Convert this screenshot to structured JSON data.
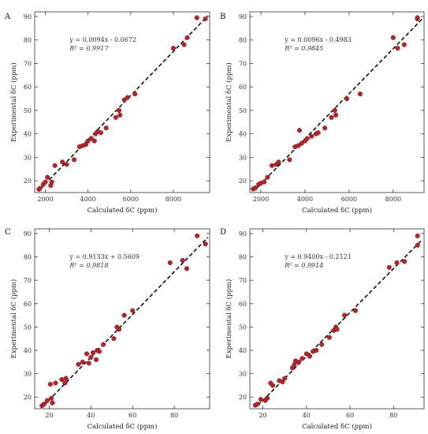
{
  "chart_data": [
    {
      "type": "scatter",
      "panel": "A",
      "xlabel": "Calculated δC (ppm)",
      "ylabel": "Experimental δC (ppm)",
      "xlim": [
        1500,
        9700
      ],
      "ylim": [
        15,
        92
      ],
      "xticks": [
        "2000",
        "4000",
        "6000",
        "8000"
      ],
      "yticks": [
        "20",
        "30",
        "40",
        "50",
        "60",
        "70",
        "80",
        "90"
      ],
      "equation": "y = 0.0094x - 0.0672",
      "r2_label": "R² = 0.9917",
      "fit": {
        "slope": 0.0094,
        "intercept": -0.0672
      },
      "points": [
        [
          1700,
          16.4
        ],
        [
          1750,
          16.8
        ],
        [
          1900,
          18.5
        ],
        [
          2000,
          19.5
        ],
        [
          2100,
          21.5
        ],
        [
          2250,
          18.0
        ],
        [
          2300,
          19.5
        ],
        [
          2450,
          26.5
        ],
        [
          2800,
          28.0
        ],
        [
          3000,
          27.0
        ],
        [
          3350,
          29.0
        ],
        [
          3600,
          34.5
        ],
        [
          3750,
          35.0
        ],
        [
          3900,
          35.5
        ],
        [
          4000,
          37.0
        ],
        [
          4150,
          38.0
        ],
        [
          4300,
          37.0
        ],
        [
          4350,
          40.0
        ],
        [
          4450,
          41.0
        ],
        [
          4600,
          40.5
        ],
        [
          4850,
          42.5
        ],
        [
          5300,
          47.0
        ],
        [
          5450,
          50.0
        ],
        [
          5500,
          48.0
        ],
        [
          5700,
          54.5
        ],
        [
          5850,
          55.5
        ],
        [
          6200,
          57.0
        ],
        [
          8000,
          76.5
        ],
        [
          8500,
          78.0
        ],
        [
          8650,
          81.0
        ],
        [
          9100,
          89.5
        ],
        [
          9500,
          89.0
        ]
      ]
    },
    {
      "type": "scatter",
      "panel": "B",
      "xlabel": "Calculated δC (ppm)",
      "ylabel": "Experimental δC (ppm)",
      "xlim": [
        1500,
        9400
      ],
      "ylim": [
        15,
        92
      ],
      "xticks": [
        "2000",
        "4000",
        "6000",
        "8000"
      ],
      "yticks": [
        "20",
        "30",
        "40",
        "50",
        "60",
        "70",
        "80",
        "90"
      ],
      "equation": "y = 0.0096x - 0.4983",
      "r2_label": "R² = 0.9845",
      "fit": {
        "slope": 0.0096,
        "intercept": -0.4983
      },
      "points": [
        [
          1650,
          16.5
        ],
        [
          1750,
          17.0
        ],
        [
          1900,
          18.5
        ],
        [
          2000,
          19.0
        ],
        [
          2150,
          19.5
        ],
        [
          2300,
          21.5
        ],
        [
          2500,
          26.5
        ],
        [
          2700,
          27.0
        ],
        [
          2800,
          28.0
        ],
        [
          3300,
          29.0
        ],
        [
          3550,
          34.5
        ],
        [
          3700,
          35.0
        ],
        [
          3750,
          41.5
        ],
        [
          3850,
          36.0
        ],
        [
          4000,
          37.0
        ],
        [
          4100,
          38.0
        ],
        [
          4300,
          39.0
        ],
        [
          4500,
          40.0
        ],
        [
          4600,
          40.5
        ],
        [
          4900,
          42.5
        ],
        [
          5200,
          47.0
        ],
        [
          5350,
          50.0
        ],
        [
          5400,
          48.0
        ],
        [
          5900,
          55.0
        ],
        [
          6500,
          57.0
        ],
        [
          8000,
          81.0
        ],
        [
          8200,
          76.5
        ],
        [
          8500,
          78.0
        ],
        [
          9100,
          89.0
        ],
        [
          9100,
          89.5
        ]
      ]
    },
    {
      "type": "scatter",
      "panel": "C",
      "xlabel": "Calculated δC (ppm)",
      "ylabel": "Experimental δC (ppm)",
      "xlim": [
        13,
        97
      ],
      "ylim": [
        15,
        92
      ],
      "xticks": [
        "20",
        "40",
        "60",
        "80"
      ],
      "yticks": [
        "20",
        "30",
        "40",
        "50",
        "60",
        "70",
        "80",
        "90"
      ],
      "equation": "y = 0.9133x + 0.5609",
      "r2_label": "R² = 0.9818",
      "fit": {
        "slope": 0.9133,
        "intercept": 0.5609
      },
      "points": [
        [
          16.5,
          16.3
        ],
        [
          17.5,
          17.0
        ],
        [
          19.0,
          18.5
        ],
        [
          20.5,
          25.5
        ],
        [
          21.0,
          19.5
        ],
        [
          21.5,
          17.5
        ],
        [
          23.0,
          26.0
        ],
        [
          26.0,
          27.5
        ],
        [
          27.5,
          26.0
        ],
        [
          28.0,
          28.0
        ],
        [
          34.0,
          34.0
        ],
        [
          36.0,
          35.0
        ],
        [
          38.0,
          38.5
        ],
        [
          39.0,
          34.5
        ],
        [
          40.0,
          37.0
        ],
        [
          41.0,
          39.0
        ],
        [
          42.5,
          36.0
        ],
        [
          43.0,
          40.0
        ],
        [
          44.0,
          39.5
        ],
        [
          46.0,
          42.5
        ],
        [
          51.0,
          45.0
        ],
        [
          52.5,
          50.0
        ],
        [
          53.5,
          49.0
        ],
        [
          56.0,
          55.0
        ],
        [
          60.0,
          57.0
        ],
        [
          78.0,
          77.5
        ],
        [
          84.0,
          78.5
        ],
        [
          86.0,
          75.0
        ],
        [
          91.0,
          89.0
        ],
        [
          95.0,
          85.5
        ]
      ]
    },
    {
      "type": "scatter",
      "panel": "D",
      "xlabel": "Calculated δC (ppm)",
      "ylabel": "Experimental δC (ppm)",
      "xlim": [
        14,
        94
      ],
      "ylim": [
        15,
        92
      ],
      "xticks": [
        "20",
        "40",
        "60",
        "80"
      ],
      "yticks": [
        "20",
        "30",
        "40",
        "50",
        "60",
        "70",
        "80",
        "90"
      ],
      "equation": "y = 0.9400x - 0.2121",
      "r2_label": "R² = 0.9914",
      "fit": {
        "slope": 0.94,
        "intercept": -0.2121
      },
      "points": [
        [
          16.5,
          16.5
        ],
        [
          17.5,
          17.0
        ],
        [
          19.0,
          19.0
        ],
        [
          21.0,
          18.5
        ],
        [
          22.0,
          19.5
        ],
        [
          23.5,
          26.0
        ],
        [
          24.5,
          25.0
        ],
        [
          27.5,
          27.0
        ],
        [
          29.0,
          26.5
        ],
        [
          30.0,
          28.0
        ],
        [
          33.5,
          32.5
        ],
        [
          34.5,
          34.0
        ],
        [
          35.0,
          35.5
        ],
        [
          36.5,
          35.0
        ],
        [
          38.0,
          36.5
        ],
        [
          40.0,
          38.5
        ],
        [
          41.5,
          37.5
        ],
        [
          43.0,
          39.5
        ],
        [
          44.5,
          40.0
        ],
        [
          47.0,
          42.5
        ],
        [
          50.5,
          45.5
        ],
        [
          52.5,
          48.5
        ],
        [
          53.5,
          50.0
        ],
        [
          54.0,
          49.0
        ],
        [
          57.5,
          55.0
        ],
        [
          62.5,
          57.0
        ],
        [
          78.0,
          75.5
        ],
        [
          81.5,
          77.5
        ],
        [
          85.0,
          78.0
        ],
        [
          91.0,
          85.0
        ],
        [
          91.0,
          89.0
        ]
      ]
    }
  ]
}
